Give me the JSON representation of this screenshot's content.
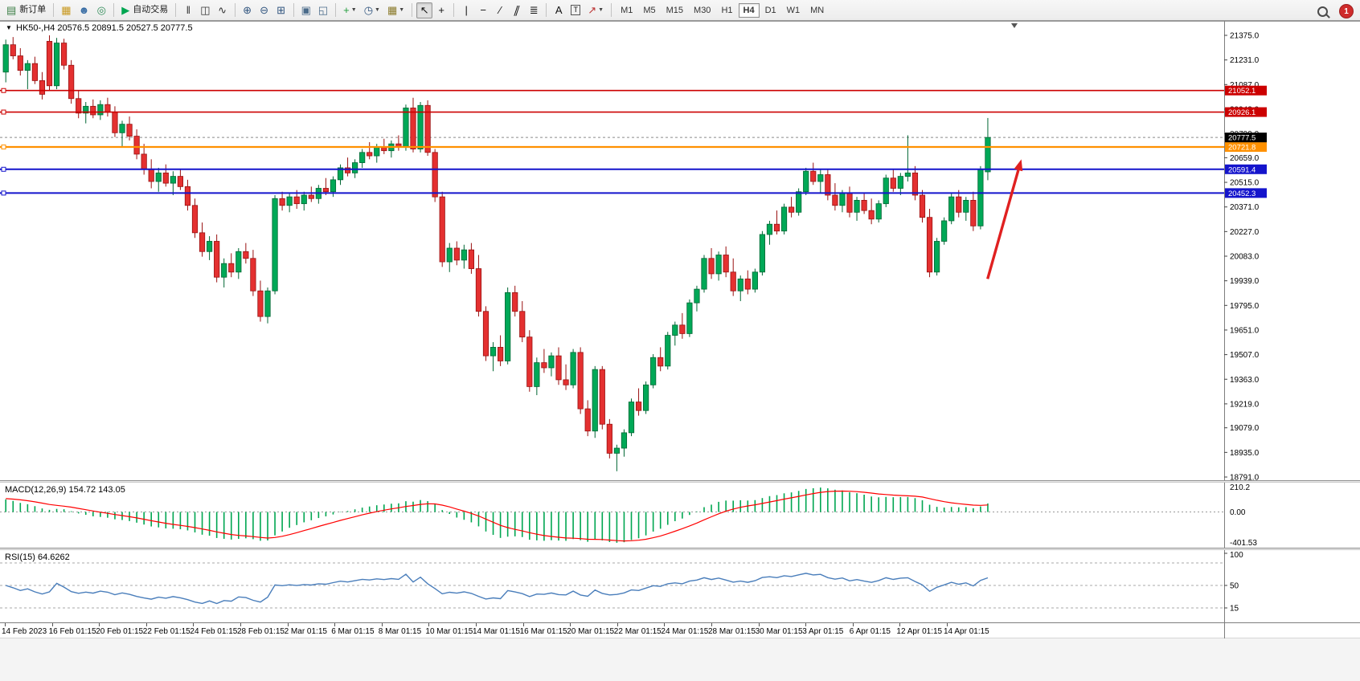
{
  "toolbar": {
    "groups": [
      {
        "items": [
          {
            "name": "new-order-button",
            "icon_name": "order-form-icon",
            "glyph": "▤",
            "color": "#3a7d44",
            "label": "新订单"
          }
        ]
      },
      {
        "items": [
          {
            "name": "data-window-button",
            "icon_name": "data-window-icon",
            "glyph": "▦",
            "color": "#c8981e"
          },
          {
            "name": "navigator-button",
            "icon_name": "navigator-icon",
            "glyph": "☻",
            "color": "#3a6ea5"
          },
          {
            "name": "terminal-button",
            "icon_name": "terminal-icon",
            "glyph": "◎",
            "color": "#2e8b57"
          }
        ]
      },
      {
        "items": [
          {
            "name": "autotrading-button",
            "icon_name": "autotrading-play-icon",
            "glyph": "▶",
            "color": "#00a651",
            "label": "自动交易"
          }
        ]
      },
      {
        "items": [
          {
            "name": "bar-chart-button",
            "icon_name": "bars-icon",
            "glyph": "‖",
            "color": "#333333"
          },
          {
            "name": "candlestick-chart-button",
            "icon_name": "candles-icon",
            "glyph": "◫",
            "color": "#333333"
          },
          {
            "name": "line-chart-button",
            "icon_name": "line-icon",
            "glyph": "∿",
            "color": "#333333"
          }
        ]
      },
      {
        "items": [
          {
            "name": "zoom-in-button",
            "icon_name": "zoom-in-icon",
            "glyph": "⊕",
            "color": "#31557f"
          },
          {
            "name": "zoom-out-button",
            "icon_name": "zoom-out-icon",
            "glyph": "⊖",
            "color": "#31557f"
          },
          {
            "name": "tile-windows-button",
            "icon_name": "tile-windows-icon",
            "glyph": "⊞",
            "color": "#31557f"
          }
        ]
      },
      {
        "items": [
          {
            "name": "cascade-windows-button",
            "icon_name": "cascade-icon",
            "glyph": "▣",
            "color": "#4a6b8a"
          },
          {
            "name": "arrange-windows-button",
            "icon_name": "arrange-icon",
            "glyph": "◱",
            "color": "#4a6b8a"
          }
        ]
      },
      {
        "items": [
          {
            "name": "indicators-button",
            "icon_name": "add-indicator-icon",
            "glyph": "+",
            "color": "#1f9d3a",
            "drop": true
          },
          {
            "name": "periods-button",
            "icon_name": "clock-icon",
            "glyph": "◷",
            "color": "#31557f",
            "drop": true
          },
          {
            "name": "templates-button",
            "icon_name": "template-icon",
            "glyph": "▦",
            "color": "#8a7a2a",
            "drop": true
          }
        ]
      },
      {
        "items": [
          {
            "name": "cursor-button",
            "icon_name": "cursor-icon",
            "glyph": "↖",
            "color": "#111111",
            "pressed": true
          },
          {
            "name": "crosshair-button",
            "icon_name": "crosshair-icon",
            "glyph": "+",
            "color": "#111111"
          }
        ]
      },
      {
        "items": [
          {
            "name": "vertical-line-button",
            "icon_name": "vertical-line-icon",
            "glyph": "|",
            "color": "#111111"
          },
          {
            "name": "horizontal-line-button",
            "icon_name": "horizontal-line-icon",
            "glyph": "−",
            "color": "#111111"
          },
          {
            "name": "trendline-button",
            "icon_name": "trendline-icon",
            "glyph": "∕",
            "color": "#111111"
          },
          {
            "name": "channel-button",
            "icon_name": "channel-icon",
            "glyph": "∥",
            "color": "#111111",
            "slant": true
          },
          {
            "name": "fibonacci-button",
            "icon_name": "fibonacci-icon",
            "glyph": "≣",
            "color": "#111111"
          }
        ]
      },
      {
        "items": [
          {
            "name": "text-button",
            "icon_name": "text-icon",
            "glyph": "A",
            "color": "#111111"
          },
          {
            "name": "text-label-button",
            "icon_name": "text-label-icon",
            "glyph": "T",
            "color": "#111111",
            "boxed": true
          },
          {
            "name": "arrows-button",
            "icon_name": "arrow-object-icon",
            "glyph": "↗",
            "color": "#bb3333",
            "drop": true
          }
        ]
      },
      {
        "type": "timeframes",
        "items": [
          {
            "name": "tf-m1",
            "label": "M1"
          },
          {
            "name": "tf-m5",
            "label": "M5"
          },
          {
            "name": "tf-m15",
            "label": "M15"
          },
          {
            "name": "tf-m30",
            "label": "M30"
          },
          {
            "name": "tf-h1",
            "label": "H1"
          },
          {
            "name": "tf-h4",
            "label": "H4",
            "pressed": true
          },
          {
            "name": "tf-d1",
            "label": "D1"
          },
          {
            "name": "tf-w1",
            "label": "W1"
          },
          {
            "name": "tf-mn",
            "label": "MN"
          }
        ]
      }
    ],
    "right": {
      "notification_count": "1"
    }
  },
  "chart_data": {
    "type": "candlestick",
    "collapse_arrow": "▼",
    "title": "HK50-,H4  20576.5 20891.5 20527.5 20777.5",
    "symbol": "HK50-",
    "period": "H4",
    "ohlc_display": {
      "open": "20576.5",
      "high": "20891.5",
      "low": "20527.5",
      "close": "20777.5"
    },
    "up_color": "#00A857",
    "up_stroke": "#006633",
    "down_color": "#E43030",
    "down_stroke": "#991111",
    "price_range": {
      "top": 21375.0,
      "bottom": 18791.0
    },
    "price_scale": [
      "21375.0",
      "21231.0",
      "21087.0",
      "20943.0",
      "20799.0",
      "20659.0",
      "20515.0",
      "20371.0",
      "20227.0",
      "20083.0",
      "19939.0",
      "19795.0",
      "19651.0",
      "19507.0",
      "19363.0",
      "19219.0",
      "19079.0",
      "18935.0",
      "18791.0"
    ],
    "hlines": [
      {
        "price": 21052.1,
        "label": "21052.1",
        "color": "#cc0000",
        "width": 1.6
      },
      {
        "price": 20926.1,
        "label": "20926.1",
        "color": "#cc0000",
        "width": 1.6
      },
      {
        "price": 20721.8,
        "label": "20721.8",
        "color": "#ff9100",
        "width": 2.2
      },
      {
        "price": 20591.4,
        "label": "20591.4",
        "color": "#1414cc",
        "width": 2.0
      },
      {
        "price": 20452.3,
        "label": "20452.3",
        "color": "#1414cc",
        "width": 2.0
      }
    ],
    "bid": {
      "price": 20777.5,
      "label": "20777.5",
      "tag_color": "#000000"
    },
    "arrow": {
      "price_tail": 19950,
      "price_head": 20650,
      "color": "#e02020"
    },
    "candles": [
      [
        21160,
        21350,
        21100,
        21320
      ],
      [
        21320,
        21365,
        21235,
        21255
      ],
      [
        21255,
        21300,
        21140,
        21170
      ],
      [
        21170,
        21230,
        21060,
        21210
      ],
      [
        21210,
        21250,
        21090,
        21110
      ],
      [
        21110,
        21160,
        21000,
        21030
      ],
      [
        21340,
        21375,
        21050,
        21080
      ],
      [
        21080,
        21360,
        21060,
        21330
      ],
      [
        21330,
        21355,
        21175,
        21200
      ],
      [
        21200,
        21230,
        20975,
        21005
      ],
      [
        21005,
        21055,
        20890,
        20920
      ],
      [
        20920,
        20985,
        20860,
        20960
      ],
      [
        20960,
        21000,
        20890,
        20910
      ],
      [
        20910,
        20995,
        20880,
        20970
      ],
      [
        20970,
        21010,
        20900,
        20925
      ],
      [
        20925,
        20960,
        20780,
        20805
      ],
      [
        20805,
        20875,
        20725,
        20855
      ],
      [
        20855,
        20900,
        20760,
        20785
      ],
      [
        20785,
        20825,
        20650,
        20680
      ],
      [
        20680,
        20740,
        20560,
        20590
      ],
      [
        20590,
        20650,
        20480,
        20520
      ],
      [
        20520,
        20600,
        20460,
        20570
      ],
      [
        20570,
        20620,
        20490,
        20510
      ],
      [
        20510,
        20580,
        20440,
        20550
      ],
      [
        20550,
        20590,
        20470,
        20490
      ],
      [
        20490,
        20530,
        20350,
        20380
      ],
      [
        20380,
        20420,
        20190,
        20220
      ],
      [
        20220,
        20280,
        20080,
        20110
      ],
      [
        20110,
        20200,
        20060,
        20170
      ],
      [
        20170,
        20210,
        19930,
        19960
      ],
      [
        19960,
        20070,
        19900,
        20040
      ],
      [
        20040,
        20100,
        19960,
        19990
      ],
      [
        19990,
        20130,
        19950,
        20110
      ],
      [
        20110,
        20160,
        20040,
        20070
      ],
      [
        20070,
        20120,
        19850,
        19880
      ],
      [
        19880,
        19940,
        19700,
        19730
      ],
      [
        19730,
        19900,
        19690,
        19880
      ],
      [
        19880,
        20440,
        19860,
        20420
      ],
      [
        20420,
        20460,
        20350,
        20380
      ],
      [
        20380,
        20450,
        20340,
        20430
      ],
      [
        20430,
        20470,
        20360,
        20390
      ],
      [
        20390,
        20460,
        20350,
        20440
      ],
      [
        20440,
        20490,
        20400,
        20420
      ],
      [
        20420,
        20500,
        20390,
        20480
      ],
      [
        20480,
        20540,
        20440,
        20460
      ],
      [
        20460,
        20550,
        20430,
        20530
      ],
      [
        20530,
        20620,
        20500,
        20600
      ],
      [
        20600,
        20660,
        20550,
        20570
      ],
      [
        20570,
        20650,
        20540,
        20630
      ],
      [
        20630,
        20710,
        20600,
        20690
      ],
      [
        20690,
        20750,
        20650,
        20670
      ],
      [
        20670,
        20740,
        20630,
        20720
      ],
      [
        20720,
        20770,
        20680,
        20700
      ],
      [
        20700,
        20760,
        20660,
        20740
      ],
      [
        20740,
        20790,
        20700,
        20720
      ],
      [
        20720,
        20970,
        20700,
        20950
      ],
      [
        20950,
        21010,
        20690,
        20710
      ],
      [
        20710,
        20985,
        20690,
        20965
      ],
      [
        20965,
        20995,
        20670,
        20690
      ],
      [
        20690,
        20710,
        20400,
        20430
      ],
      [
        20430,
        20460,
        20020,
        20050
      ],
      [
        20050,
        20160,
        19990,
        20130
      ],
      [
        20130,
        20170,
        20030,
        20060
      ],
      [
        20060,
        20150,
        20010,
        20120
      ],
      [
        20120,
        20160,
        19980,
        20010
      ],
      [
        20010,
        20090,
        19730,
        19760
      ],
      [
        19760,
        19790,
        19470,
        19500
      ],
      [
        19500,
        19580,
        19410,
        19550
      ],
      [
        19550,
        19620,
        19440,
        19470
      ],
      [
        19470,
        19900,
        19450,
        19870
      ],
      [
        19870,
        19910,
        19730,
        19760
      ],
      [
        19760,
        19820,
        19580,
        19610
      ],
      [
        19610,
        19650,
        19290,
        19320
      ],
      [
        19320,
        19490,
        19270,
        19460
      ],
      [
        19460,
        19540,
        19400,
        19430
      ],
      [
        19430,
        19520,
        19380,
        19500
      ],
      [
        19500,
        19550,
        19330,
        19360
      ],
      [
        19360,
        19450,
        19300,
        19330
      ],
      [
        19330,
        19540,
        19310,
        19520
      ],
      [
        19520,
        19550,
        19160,
        19190
      ],
      [
        19190,
        19240,
        19030,
        19060
      ],
      [
        19060,
        19440,
        19020,
        19420
      ],
      [
        19420,
        19440,
        19070,
        19100
      ],
      [
        19100,
        19130,
        18900,
        18930
      ],
      [
        18930,
        18980,
        18825,
        18960
      ],
      [
        18960,
        19070,
        18910,
        19050
      ],
      [
        19050,
        19250,
        19030,
        19230
      ],
      [
        19230,
        19310,
        19150,
        19180
      ],
      [
        19180,
        19350,
        19160,
        19330
      ],
      [
        19330,
        19510,
        19310,
        19490
      ],
      [
        19490,
        19550,
        19410,
        19440
      ],
      [
        19440,
        19640,
        19420,
        19620
      ],
      [
        19620,
        19700,
        19560,
        19680
      ],
      [
        19680,
        19750,
        19600,
        19630
      ],
      [
        19630,
        19830,
        19610,
        19810
      ],
      [
        19810,
        19910,
        19760,
        19890
      ],
      [
        19890,
        20090,
        19870,
        20070
      ],
      [
        20070,
        20130,
        19950,
        19980
      ],
      [
        19980,
        20110,
        19940,
        20090
      ],
      [
        20090,
        20140,
        19960,
        19990
      ],
      [
        19990,
        20070,
        19850,
        19880
      ],
      [
        19880,
        19970,
        19820,
        19950
      ],
      [
        19950,
        20000,
        19860,
        19890
      ],
      [
        19890,
        20010,
        19870,
        19990
      ],
      [
        19990,
        20230,
        19970,
        20210
      ],
      [
        20210,
        20290,
        20150,
        20270
      ],
      [
        20270,
        20350,
        20210,
        20230
      ],
      [
        20230,
        20390,
        20210,
        20370
      ],
      [
        20370,
        20430,
        20310,
        20340
      ],
      [
        20340,
        20480,
        20320,
        20460
      ],
      [
        20460,
        20600,
        20440,
        20580
      ],
      [
        20580,
        20630,
        20500,
        20520
      ],
      [
        20520,
        20590,
        20450,
        20560
      ],
      [
        20560,
        20590,
        20410,
        20440
      ],
      [
        20440,
        20510,
        20350,
        20380
      ],
      [
        20380,
        20470,
        20340,
        20450
      ],
      [
        20450,
        20490,
        20310,
        20340
      ],
      [
        20340,
        20430,
        20290,
        20410
      ],
      [
        20410,
        20450,
        20330,
        20350
      ],
      [
        20350,
        20420,
        20270,
        20300
      ],
      [
        20300,
        20410,
        20280,
        20390
      ],
      [
        20390,
        20560,
        20370,
        20540
      ],
      [
        20540,
        20590,
        20460,
        20480
      ],
      [
        20480,
        20570,
        20440,
        20550
      ],
      [
        20550,
        20790,
        20520,
        20570
      ],
      [
        20570,
        20610,
        20410,
        20440
      ],
      [
        20440,
        20470,
        20280,
        20310
      ],
      [
        20310,
        20360,
        19960,
        19990
      ],
      [
        19990,
        20190,
        19970,
        20170
      ],
      [
        20170,
        20310,
        20150,
        20290
      ],
      [
        20290,
        20450,
        20270,
        20430
      ],
      [
        20430,
        20470,
        20310,
        20340
      ],
      [
        20340,
        20430,
        20290,
        20410
      ],
      [
        20410,
        20460,
        20230,
        20260
      ],
      [
        20260,
        20610,
        20240,
        20590
      ],
      [
        20576.5,
        20891.5,
        20527.5,
        20777.5
      ]
    ],
    "time_axis": [
      "14 Feb 2023",
      "16 Feb 01:15",
      "20 Feb 01:15",
      "22 Feb 01:15",
      "24 Feb 01:15",
      "28 Feb 01:15",
      "2 Mar 01:15",
      "6 Mar 01:15",
      "8 Mar 01:15",
      "10 Mar 01:15",
      "14 Mar 01:15",
      "16 Mar 01:15",
      "20 Mar 01:15",
      "22 Mar 01:15",
      "24 Mar 01:15",
      "28 Mar 01:15",
      "30 Mar 01:15",
      "3 Apr 01:15",
      "6 Apr 01:15",
      "12 Apr 01:15",
      "14 Apr 01:15"
    ],
    "indicators": {
      "macd": {
        "label": "MACD(12,26,9) 154.72 143.05",
        "fast": 12,
        "slow": 26,
        "signal": 9,
        "values_display": {
          "main": "154.72",
          "signal": "143.05"
        },
        "scale_labels": [
          "210.2",
          "0.00",
          "-401.53"
        ],
        "hist_color": "#00a651",
        "signal_color": "#ff0000"
      },
      "rsi": {
        "label": "RSI(15) 64.6262",
        "period": 15,
        "value_display": "64.6262",
        "scale_labels": [
          "100",
          "50",
          "15"
        ],
        "levels": [
          85,
          50,
          15
        ],
        "line_color": "#4a7ebb"
      }
    }
  }
}
